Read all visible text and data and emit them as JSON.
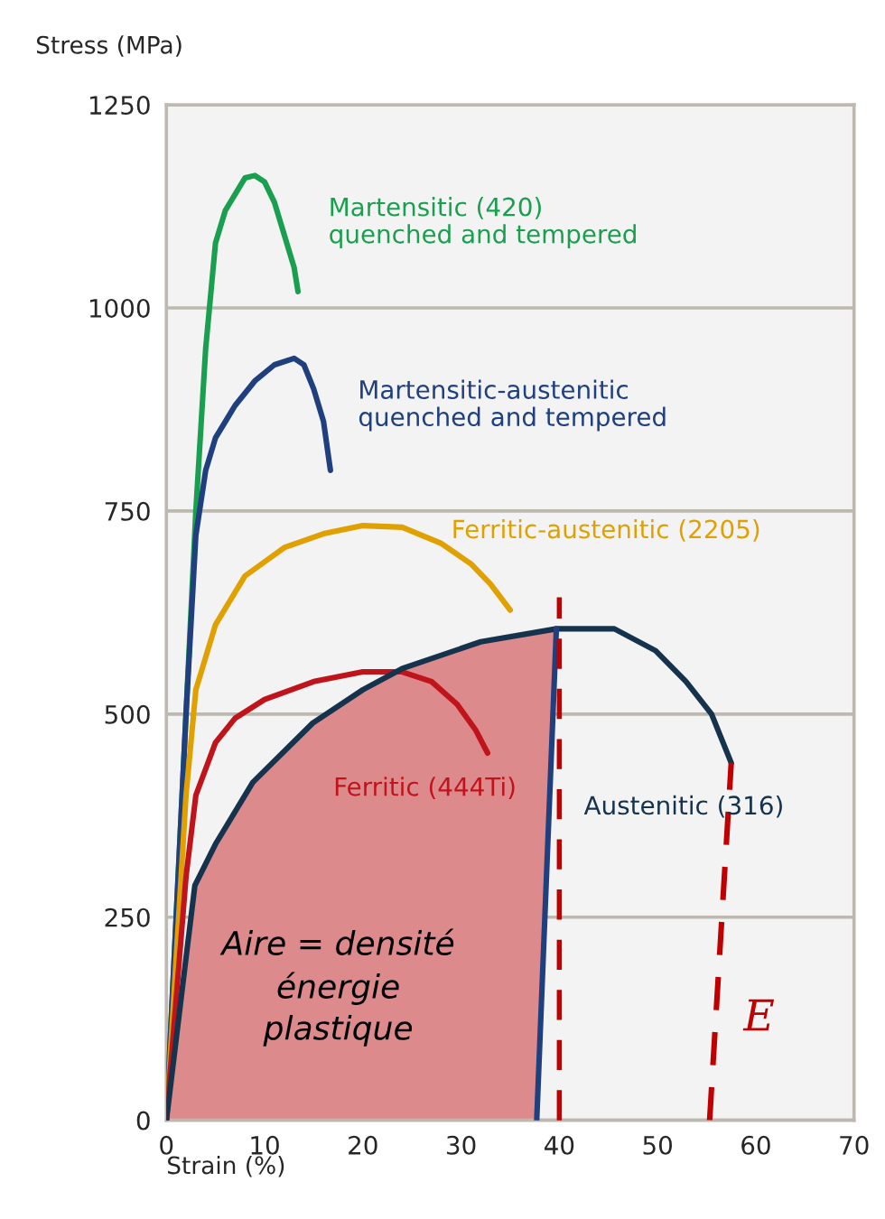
{
  "chart_data": {
    "type": "line",
    "xlabel": "Strain (%)",
    "ylabel": "Stress (MPa)",
    "xlim": [
      0,
      70
    ],
    "xticks": [
      0,
      10,
      20,
      30,
      40,
      50,
      60,
      70
    ],
    "ylim": [
      0,
      1250
    ],
    "yticks": [
      0,
      250,
      500,
      750,
      1000,
      1250
    ],
    "grid": "y",
    "series": [
      {
        "type": "area",
        "color": "#dc8a8c",
        "x": [
          0,
          1,
          2,
          2.9,
          5,
          8.8,
          14.9,
          20,
          24,
          32,
          39.7,
          37.7
        ],
        "values": [
          0,
          100,
          200,
          289,
          340,
          416,
          489,
          530,
          556,
          589,
          605,
          0
        ]
      },
      {
        "name": "Martensitic (420)\nquenched and tempered",
        "color": "#1a9e4f",
        "x": [
          0,
          1,
          2,
          3,
          4,
          5,
          6,
          8,
          9,
          10,
          11,
          12,
          13,
          13.4
        ],
        "values": [
          0,
          250,
          500,
          750,
          950,
          1080,
          1120,
          1160,
          1163,
          1155,
          1130,
          1090,
          1050,
          1020
        ]
      },
      {
        "name": "Martensitic-austenitic\nquenched and tempered",
        "color": "#1f3f7f",
        "x": [
          0,
          1,
          2,
          3,
          4,
          5,
          7,
          9,
          11,
          13,
          14,
          15,
          16,
          16.7
        ],
        "values": [
          0,
          250,
          500,
          720,
          800,
          840,
          880,
          910,
          930,
          938,
          930,
          900,
          860,
          800
        ]
      },
      {
        "name": "Ferritic-austenitic (2205)",
        "color": "#e0a000",
        "x": [
          0,
          1,
          2,
          3,
          5,
          8,
          12,
          16,
          20,
          24,
          28,
          31,
          33,
          35
        ],
        "values": [
          0,
          200,
          400,
          530,
          610,
          670,
          705,
          722,
          732,
          730,
          710,
          685,
          660,
          628
        ]
      },
      {
        "name": "Ferritic (444Ti)",
        "color": "#c0141c",
        "x": [
          0,
          1,
          2,
          3,
          5,
          7,
          10,
          15,
          20,
          24,
          27,
          29.6,
          31.5,
          32.7
        ],
        "values": [
          0,
          150,
          300,
          400,
          465,
          495,
          518,
          540,
          552,
          552,
          540,
          512,
          480,
          452
        ]
      },
      {
        "name": "Austenitic (316)",
        "color": "#16334d",
        "x": [
          0,
          1,
          2,
          2.9,
          5,
          8.8,
          14.9,
          20,
          24,
          32,
          39.7,
          45.6,
          49.8,
          52.9,
          55.5,
          57.5
        ],
        "values": [
          0,
          100,
          200,
          289,
          340,
          416,
          489,
          530,
          556,
          589,
          605,
          605,
          578,
          540,
          500,
          440
        ]
      },
      {
        "color": "#1f3f7f",
        "x": [
          37.7,
          39.7
        ],
        "values": [
          0,
          605
        ]
      },
      {
        "color": "#c00000",
        "line_style": "dashed",
        "x": [
          55.3,
          57.5
        ],
        "values": [
          0,
          440
        ]
      }
    ],
    "ref_lines": [
      {
        "axis": "x",
        "value": 40,
        "color": "#c00000",
        "line_style": "dashed"
      }
    ],
    "annotations": [
      "Aire = densité\nénergie\nplastique",
      "E"
    ]
  }
}
